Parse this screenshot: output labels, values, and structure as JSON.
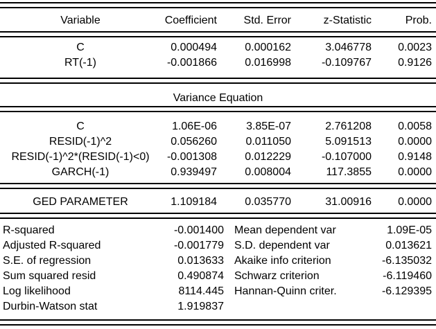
{
  "colors": {
    "background": "#ffffff",
    "text": "#000000",
    "rule": "#000000"
  },
  "table": {
    "headers": {
      "variable": "Variable",
      "coefficient": "Coefficient",
      "std_error": "Std. Error",
      "z_statistic": "z-Statistic",
      "prob": "Prob."
    },
    "mean_rows": [
      {
        "variable": "C",
        "coefficient": "0.000494",
        "std_error": "0.000162",
        "z_statistic": "3.046778",
        "prob": "0.0023"
      },
      {
        "variable": "RT(-1)",
        "coefficient": "-0.001866",
        "std_error": "0.016998",
        "z_statistic": "-0.109767",
        "prob": "0.9126"
      }
    ],
    "variance_section_title": "Variance Equation",
    "variance_rows": [
      {
        "variable": "C",
        "coefficient": "1.06E-06",
        "std_error": "3.85E-07",
        "z_statistic": "2.761208",
        "prob": "0.0058"
      },
      {
        "variable": "RESID(-1)^2",
        "coefficient": "0.056260",
        "std_error": "0.011050",
        "z_statistic": "5.091513",
        "prob": "0.0000"
      },
      {
        "variable": "RESID(-1)^2*(RESID(-1)<0)",
        "coefficient": "-0.001308",
        "std_error": "0.012229",
        "z_statistic": "-0.107000",
        "prob": "0.9148"
      },
      {
        "variable": "GARCH(-1)",
        "coefficient": "0.939497",
        "std_error": "0.008004",
        "z_statistic": "117.3855",
        "prob": "0.0000"
      }
    ],
    "distribution_rows": [
      {
        "variable": "GED PARAMETER",
        "coefficient": "1.109184",
        "std_error": "0.035770",
        "z_statistic": "31.00916",
        "prob": "0.0000"
      }
    ]
  },
  "summary_stats": {
    "left": [
      {
        "label": "R-squared",
        "value": "-0.001400"
      },
      {
        "label": "Adjusted R-squared",
        "value": "-0.001779"
      },
      {
        "label": "S.E. of regression",
        "value": "0.013633"
      },
      {
        "label": "Sum squared resid",
        "value": "0.490874"
      },
      {
        "label": "Log likelihood",
        "value": "8114.445"
      },
      {
        "label": "Durbin-Watson stat",
        "value": "1.919837"
      }
    ],
    "right": [
      {
        "label": "Mean dependent var",
        "value": "1.09E-05"
      },
      {
        "label": "S.D. dependent var",
        "value": "0.013621"
      },
      {
        "label": "Akaike info criterion",
        "value": "-6.135032"
      },
      {
        "label": "Schwarz criterion",
        "value": "-6.119460"
      },
      {
        "label": "Hannan-Quinn criter.",
        "value": "-6.129395"
      }
    ]
  }
}
